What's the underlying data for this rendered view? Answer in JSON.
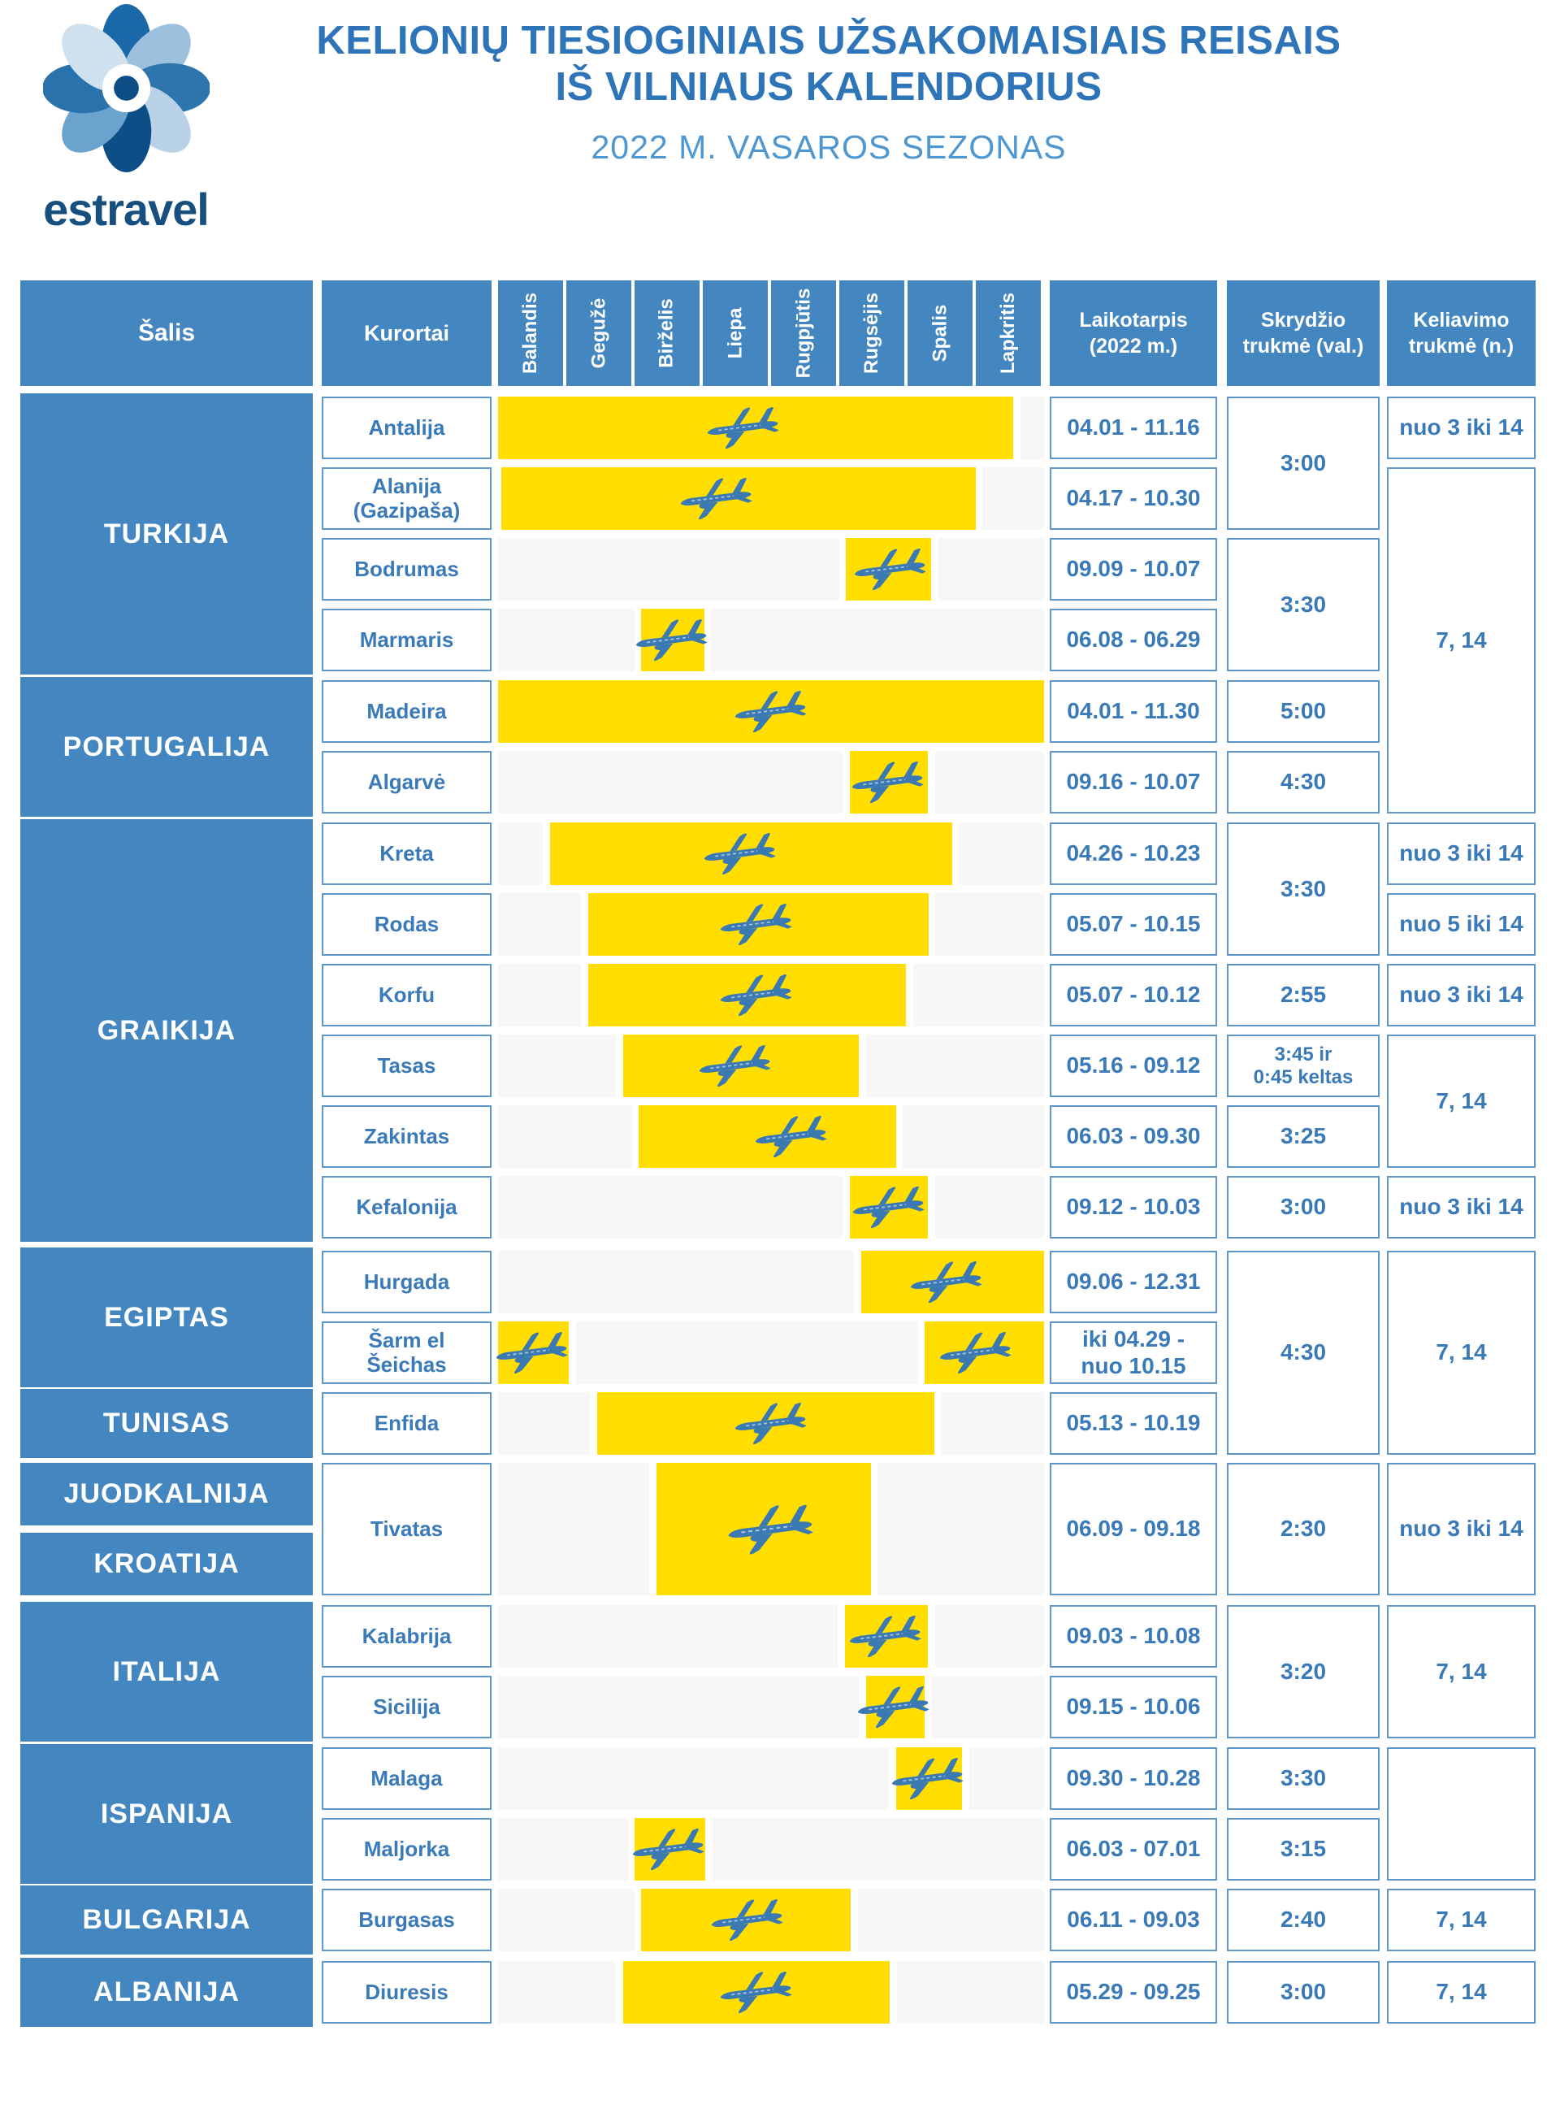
{
  "header": {
    "logo_text": "estravel",
    "title_line1": "KELIONIŲ TIESIOGINIAIS UŽSAKOMAISIAIS REISAIS",
    "title_line2": "IŠ VILNIAUS KALENDORIUS",
    "subtitle": "2022 M. VASAROS SEZONAS"
  },
  "colors": {
    "blue_fill": "#4386c0",
    "cell_border": "#5e98ca",
    "blue_text": "#3a7ab8",
    "bar_yellow": "#ffde00",
    "strip_gray": "#f7f7f7",
    "logo_navy": "#17507f",
    "title_blue": "#2e74b8",
    "plane_blue": "#3b79b3"
  },
  "table": {
    "col_country": "Šalis",
    "col_resorts": "Kurortai",
    "months": [
      "Balandis",
      "Gegužė",
      "Birželis",
      "Liepa",
      "Rugpjūtis",
      "Rugsėjis",
      "Spalis",
      "Lapkritis"
    ],
    "col_period": "Laikotarpis\n(2022 m.)",
    "col_flight": "Skrydžio\ntrukmė (val.)",
    "col_travel": "Keliavimo\ntrukmė (n.)"
  },
  "groups": [
    {
      "country": "TURKIJA",
      "first": 0,
      "last": 3
    },
    {
      "country": "PORTUGALIJA",
      "first": 4,
      "last": 5
    },
    {
      "country": "GRAIKIJA",
      "first": 6,
      "last": 11
    },
    {
      "country": "EGIPTAS",
      "first": 12,
      "last": 13
    },
    {
      "country": "TUNISAS",
      "first": 14,
      "last": 14
    },
    {
      "country": "JUODKALNIJA",
      "y": [
        1800,
        1877
      ]
    },
    {
      "country": "KROATIJA",
      "y": [
        1886,
        1963
      ]
    },
    {
      "country": "ITALIJA",
      "first": 16,
      "last": 17
    },
    {
      "country": "ISPANIJA",
      "first": 18,
      "last": 19
    },
    {
      "country": "BULGARIJA",
      "first": 20,
      "last": 20
    },
    {
      "country": "ALBANIJA",
      "first": 21,
      "last": 21
    }
  ],
  "rows": [
    {
      "resort": "Antalija",
      "period": "04.01 - 11.16",
      "bars": [
        {
          "f": 0.0,
          "t": 7.55,
          "p": 3.6
        }
      ]
    },
    {
      "resort": "Alanija\n(Gazipaša)",
      "period": "04.17 - 10.30",
      "bars": [
        {
          "f": 0.05,
          "t": 7.0,
          "p": 3.2
        }
      ]
    },
    {
      "resort": "Bodrumas",
      "period": "09.09 - 10.07",
      "bars": [
        {
          "f": 5.1,
          "t": 6.35,
          "p": 5.75
        }
      ]
    },
    {
      "resort": "Marmaris",
      "period": "06.08 - 06.29",
      "bars": [
        {
          "f": 2.1,
          "t": 3.02,
          "p": 2.55
        }
      ]
    },
    {
      "resort": "Madeira",
      "period": "04.01 - 11.30",
      "bars": [
        {
          "f": 0.0,
          "t": 8.0,
          "p": 4.0
        }
      ]
    },
    {
      "resort": "Algarvė",
      "period": "09.16 - 10.07",
      "bars": [
        {
          "f": 5.15,
          "t": 6.3,
          "p": 5.72
        }
      ]
    },
    {
      "resort": "Kreta",
      "period": "04.26 - 10.23",
      "bars": [
        {
          "f": 0.76,
          "t": 6.65,
          "p": 3.55
        }
      ]
    },
    {
      "resort": "Rodas",
      "period": "05.07 - 10.15",
      "bars": [
        {
          "f": 1.32,
          "t": 6.31,
          "p": 3.78
        }
      ]
    },
    {
      "resort": "Korfu",
      "period": "05.07 - 10.12",
      "bars": [
        {
          "f": 1.32,
          "t": 5.98,
          "p": 3.78
        }
      ]
    },
    {
      "resort": "Tasas",
      "period": "05.16 - 09.12",
      "bars": [
        {
          "f": 1.83,
          "t": 5.29,
          "p": 3.48
        }
      ]
    },
    {
      "resort": "Zakintas",
      "period": "06.03 - 09.30",
      "bars": [
        {
          "f": 2.06,
          "t": 5.83,
          "p": 4.3
        }
      ]
    },
    {
      "resort": "Kefalonija",
      "period": "09.12 - 10.03",
      "bars": [
        {
          "f": 5.15,
          "t": 6.3,
          "p": 5.73
        }
      ]
    },
    {
      "resort": "Hurgada",
      "period": "09.06 - 12.31",
      "bars": [
        {
          "f": 5.32,
          "t": 8.0,
          "p": 6.57
        }
      ]
    },
    {
      "resort": "Šarm el\nŠeichas",
      "period": "iki 04.29 -\nnuo 10.15",
      "bars": [
        {
          "f": 0.0,
          "t": 1.04,
          "p": 0.5
        },
        {
          "f": 6.25,
          "t": 8.0,
          "p": 7.0
        }
      ]
    },
    {
      "resort": "Enfida",
      "period": "05.13 - 10.19",
      "bars": [
        {
          "f": 1.45,
          "t": 6.39,
          "p": 4.0
        }
      ]
    },
    {
      "resort": "Tivatas",
      "period": "06.09 - 09.18",
      "bars": [
        {
          "f": 2.32,
          "t": 5.46,
          "p": 4.0
        }
      ],
      "big_plane": true
    },
    {
      "resort": "Kalabrija",
      "period": "09.03 - 10.08",
      "bars": [
        {
          "f": 5.08,
          "t": 6.3,
          "p": 5.68
        }
      ]
    },
    {
      "resort": "Sicilija",
      "period": "09.15 - 10.06",
      "bars": [
        {
          "f": 5.39,
          "t": 6.25,
          "p": 5.8
        }
      ]
    },
    {
      "resort": "Malaga",
      "period": "09.30 - 10.28",
      "bars": [
        {
          "f": 5.83,
          "t": 6.8,
          "p": 6.3
        }
      ]
    },
    {
      "resort": "Maljorka",
      "period": "06.03 - 07.01",
      "bars": [
        {
          "f": 2.0,
          "t": 3.04,
          "p": 2.5
        }
      ]
    },
    {
      "resort": "Burgasas",
      "period": "06.11 - 09.03",
      "bars": [
        {
          "f": 2.1,
          "t": 5.17,
          "p": 3.65
        }
      ]
    },
    {
      "resort": "Diuresis",
      "period": "05.29 - 09.25",
      "bars": [
        {
          "f": 1.83,
          "t": 5.74,
          "p": 3.78
        }
      ]
    }
  ],
  "flight_cells": [
    {
      "rows": [
        0,
        1
      ],
      "label": "3:00"
    },
    {
      "rows": [
        2,
        3
      ],
      "label": "3:30"
    },
    {
      "rows": [
        4,
        4
      ],
      "label": "5:00"
    },
    {
      "rows": [
        5,
        5
      ],
      "label": "4:30"
    },
    {
      "rows": [
        6,
        7
      ],
      "label": "3:30"
    },
    {
      "rows": [
        8,
        8
      ],
      "label": "2:55"
    },
    {
      "rows": [
        9,
        9
      ],
      "label": "3:45 ir\n0:45 keltas"
    },
    {
      "rows": [
        10,
        10
      ],
      "label": "3:25"
    },
    {
      "rows": [
        11,
        11
      ],
      "label": "3:00"
    },
    {
      "rows": [
        12,
        14
      ],
      "label": "4:30"
    },
    {
      "rows": [
        15,
        15
      ],
      "label": "2:30"
    },
    {
      "rows": [
        16,
        17
      ],
      "label": "3:20"
    },
    {
      "rows": [
        18,
        18
      ],
      "label": "3:30"
    },
    {
      "rows": [
        19,
        19
      ],
      "label": "3:15"
    },
    {
      "rows": [
        20,
        20
      ],
      "label": "2:40"
    },
    {
      "rows": [
        21,
        21
      ],
      "label": "3:00"
    }
  ],
  "travel_cells": [
    {
      "rows": [
        0,
        0
      ],
      "label": "nuo 3 iki 14"
    },
    {
      "rows": [
        1,
        5
      ],
      "label": "7, 14"
    },
    {
      "rows": [
        6,
        6
      ],
      "label": "nuo 3 iki 14"
    },
    {
      "rows": [
        7,
        7
      ],
      "label": "nuo 5 iki 14"
    },
    {
      "rows": [
        8,
        8
      ],
      "label": "nuo 3 iki 14"
    },
    {
      "rows": [
        9,
        10
      ],
      "label": "7, 14"
    },
    {
      "rows": [
        11,
        11
      ],
      "label": "nuo 3 iki 14"
    },
    {
      "rows": [
        12,
        14
      ],
      "label": "7, 14"
    },
    {
      "rows": [
        15,
        15
      ],
      "label": "nuo 3 iki 14"
    },
    {
      "rows": [
        16,
        17
      ],
      "label": "7, 14"
    },
    {
      "rows": [
        18,
        19
      ],
      "label": ""
    },
    {
      "rows": [
        20,
        20
      ],
      "label": "7, 14"
    },
    {
      "rows": [
        21,
        21
      ],
      "label": "7, 14"
    }
  ],
  "chart_data": {
    "type": "gantt",
    "title": "Kelionių tiesioginiais užsakomaisiais reisais iš Vilniaus kalendorius",
    "subtitle": "2022 m. vasaros sezonas",
    "x_axis": {
      "categories": [
        "Balandis",
        "Gegužė",
        "Birželis",
        "Liepa",
        "Rugpjūtis",
        "Rugsėjis",
        "Spalis",
        "Lapkritis"
      ],
      "range_months": [
        4,
        12
      ]
    },
    "bars": [
      {
        "country": "TURKIJA",
        "resort": "Antalija",
        "period": "04.01 - 11.16",
        "months": [
          [
            4.0,
            11.5
          ]
        ],
        "flight_h": "3:00",
        "nights": "nuo 3 iki 14"
      },
      {
        "country": "TURKIJA",
        "resort": "Alanija (Gazipaša)",
        "period": "04.17 - 10.30",
        "months": [
          [
            4.6,
            11.0
          ]
        ],
        "flight_h": "3:00",
        "nights": "7, 14"
      },
      {
        "country": "TURKIJA",
        "resort": "Bodrumas",
        "period": "09.09 - 10.07",
        "months": [
          [
            9.3,
            10.2
          ]
        ],
        "flight_h": "3:30",
        "nights": "7, 14"
      },
      {
        "country": "TURKIJA",
        "resort": "Marmaris",
        "period": "06.08 - 06.29",
        "months": [
          [
            6.3,
            7.0
          ]
        ],
        "flight_h": "3:30",
        "nights": "7, 14"
      },
      {
        "country": "PORTUGALIJA",
        "resort": "Madeira",
        "period": "04.01 - 11.30",
        "months": [
          [
            4.0,
            12.0
          ]
        ],
        "flight_h": "5:00",
        "nights": "7, 14"
      },
      {
        "country": "PORTUGALIJA",
        "resort": "Algarvė",
        "period": "09.16 - 10.07",
        "months": [
          [
            9.5,
            10.2
          ]
        ],
        "flight_h": "4:30",
        "nights": "7, 14"
      },
      {
        "country": "GRAIKIJA",
        "resort": "Kreta",
        "period": "04.26 - 10.23",
        "months": [
          [
            4.9,
            10.8
          ]
        ],
        "flight_h": "3:30",
        "nights": "nuo 3 iki 14"
      },
      {
        "country": "GRAIKIJA",
        "resort": "Rodas",
        "period": "05.07 - 10.15",
        "months": [
          [
            5.2,
            10.5
          ]
        ],
        "flight_h": "3:30",
        "nights": "nuo 5 iki 14"
      },
      {
        "country": "GRAIKIJA",
        "resort": "Korfu",
        "period": "05.07 - 10.12",
        "months": [
          [
            5.2,
            10.4
          ]
        ],
        "flight_h": "2:55",
        "nights": "nuo 3 iki 14"
      },
      {
        "country": "GRAIKIJA",
        "resort": "Tasas",
        "period": "05.16 - 09.12",
        "months": [
          [
            5.5,
            9.4
          ]
        ],
        "flight_h": "3:45 ir 0:45 keltas",
        "nights": "7, 14"
      },
      {
        "country": "GRAIKIJA",
        "resort": "Zakintas",
        "period": "06.03 - 09.30",
        "months": [
          [
            6.1,
            10.0
          ]
        ],
        "flight_h": "3:25",
        "nights": "7, 14"
      },
      {
        "country": "GRAIKIJA",
        "resort": "Kefalonija",
        "period": "09.12 - 10.03",
        "months": [
          [
            9.4,
            10.1
          ]
        ],
        "flight_h": "3:00",
        "nights": "nuo 3 iki 14"
      },
      {
        "country": "EGIPTAS",
        "resort": "Hurgada",
        "period": "09.06 - 12.31",
        "months": [
          [
            9.2,
            12.0
          ]
        ],
        "flight_h": "4:30",
        "nights": "7, 14"
      },
      {
        "country": "EGIPTAS",
        "resort": "Šarm el Šeichas",
        "period": "iki 04.29 - nuo 10.15",
        "months": [
          [
            4.0,
            5.0
          ],
          [
            10.5,
            12.0
          ]
        ],
        "flight_h": "4:30",
        "nights": "7, 14"
      },
      {
        "country": "TUNISAS",
        "resort": "Enfida",
        "period": "05.13 - 10.19",
        "months": [
          [
            5.4,
            10.6
          ]
        ],
        "flight_h": "4:30",
        "nights": "7, 14"
      },
      {
        "country": "JUODKALNIJA / KROATIJA",
        "resort": "Tivatas",
        "period": "06.09 - 09.18",
        "months": [
          [
            6.3,
            9.6
          ]
        ],
        "flight_h": "2:30",
        "nights": "nuo 3 iki 14"
      },
      {
        "country": "ITALIJA",
        "resort": "Kalabrija",
        "period": "09.03 - 10.08",
        "months": [
          [
            9.1,
            10.3
          ]
        ],
        "flight_h": "3:20",
        "nights": "7, 14"
      },
      {
        "country": "ITALIJA",
        "resort": "Sicilija",
        "period": "09.15 - 10.06",
        "months": [
          [
            9.5,
            10.2
          ]
        ],
        "flight_h": "3:20",
        "nights": "7, 14"
      },
      {
        "country": "ISPANIJA",
        "resort": "Malaga",
        "period": "09.30 - 10.28",
        "months": [
          [
            10.0,
            10.9
          ]
        ],
        "flight_h": "3:30",
        "nights": ""
      },
      {
        "country": "ISPANIJA",
        "resort": "Maljorka",
        "period": "06.03 - 07.01",
        "months": [
          [
            6.1,
            7.0
          ]
        ],
        "flight_h": "3:15",
        "nights": ""
      },
      {
        "country": "BULGARIJA",
        "resort": "Burgasas",
        "period": "06.11 - 09.03",
        "months": [
          [
            6.4,
            9.1
          ]
        ],
        "flight_h": "2:40",
        "nights": "7, 14"
      },
      {
        "country": "ALBANIJA",
        "resort": "Diuresis",
        "period": "05.29 - 09.25",
        "months": [
          [
            5.9,
            9.8
          ]
        ],
        "flight_h": "3:00",
        "nights": "7, 14"
      }
    ]
  }
}
